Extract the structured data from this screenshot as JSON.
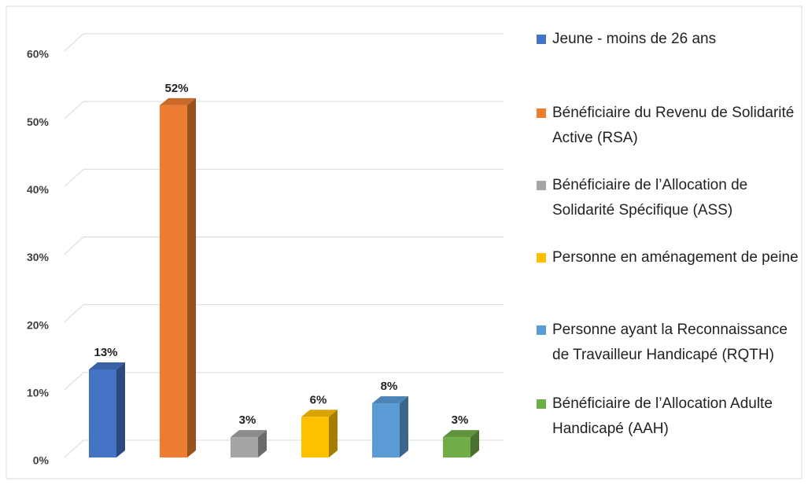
{
  "chart_data": {
    "type": "bar",
    "categories": [
      null
    ],
    "series": [
      {
        "name": "Jeune - moins de 26 ans",
        "color": "#4472c4",
        "values": [
          13
        ],
        "value_labels": [
          "13%"
        ]
      },
      {
        "name": "Bénéficiaire du Revenu de Solidarité Active (RSA)",
        "color": "#ed7d31",
        "values": [
          52
        ],
        "value_labels": [
          "52%"
        ]
      },
      {
        "name": "Bénéficiaire de l’Allocation de Solidarité Spécifique (ASS)",
        "color": "#a5a5a5",
        "values": [
          3
        ],
        "value_labels": [
          "3%"
        ]
      },
      {
        "name": "Personne en aménagement de peine",
        "color": "#ffc000",
        "values": [
          6
        ],
        "value_labels": [
          "6%"
        ]
      },
      {
        "name": "Personne ayant la Reconnaissance de Travailleur Handicapé (RQTH)",
        "color": "#5b9bd5",
        "values": [
          8
        ],
        "value_labels": [
          "8%"
        ]
      },
      {
        "name": "Bénéficiaire de l’Allocation Adulte Handicapé (AAH)",
        "color": "#70ad47",
        "values": [
          3
        ],
        "value_labels": [
          "3%"
        ]
      }
    ],
    "ylim": [
      0,
      60
    ],
    "yticks": [
      {
        "value": 0,
        "label": "0%"
      },
      {
        "value": 10,
        "label": "10%"
      },
      {
        "value": 20,
        "label": "20%"
      },
      {
        "value": 30,
        "label": "30%"
      },
      {
        "value": 40,
        "label": "40%"
      },
      {
        "value": 50,
        "label": "50%"
      },
      {
        "value": 60,
        "label": "60%"
      }
    ],
    "grid": true,
    "legend": "right"
  }
}
